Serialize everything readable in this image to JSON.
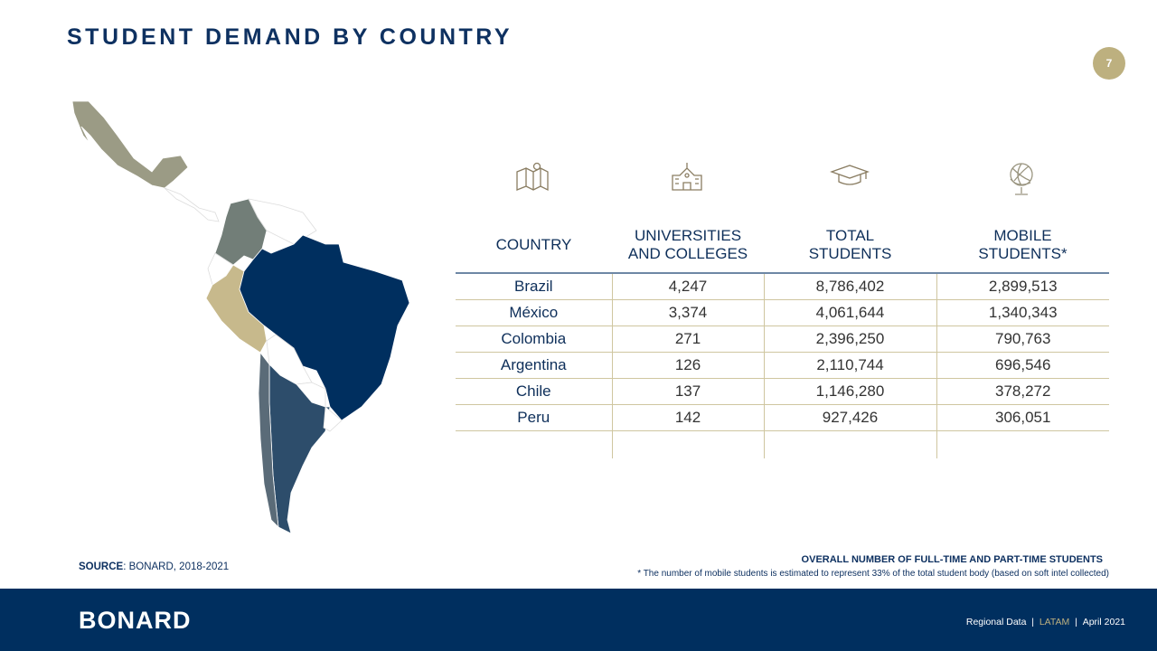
{
  "title": "STUDENT DEMAND BY COUNTRY",
  "page_number": "7",
  "colors": {
    "navy": "#002f5f",
    "gold": "#bdb07f",
    "brazil": "#002f5f",
    "mexico": "#9b9b85",
    "colombia": "#727e78",
    "peru": "#c7b98c",
    "argentina": "#2d4d6b"
  },
  "icons": [
    "map-pin-icon",
    "school-building-icon",
    "graduation-cap-icon",
    "globe-icon"
  ],
  "table": {
    "headers": [
      [
        "COUNTRY",
        ""
      ],
      [
        "UNIVERSITIES",
        "AND COLLEGES"
      ],
      [
        "TOTAL",
        "STUDENTS"
      ],
      [
        "MOBILE",
        "STUDENTS*"
      ]
    ],
    "rows": [
      [
        "Brazil",
        "4,247",
        "8,786,402",
        "2,899,513"
      ],
      [
        "México",
        "3,374",
        "4,061,644",
        "1,340,343"
      ],
      [
        "Colombia",
        "271",
        "2,396,250",
        "790,763"
      ],
      [
        "Argentina",
        "126",
        "2,110,744",
        "696,546"
      ],
      [
        "Chile",
        "137",
        "1,146,280",
        "378,272"
      ],
      [
        "Peru",
        "142",
        "927,426",
        "306,051"
      ]
    ]
  },
  "source": {
    "label": "SOURCE",
    "text": ": BONARD, 2018-2021"
  },
  "note_title": "OVERALL NUMBER OF FULL-TIME AND PART-TIME STUDENTS",
  "note_text": "* The number of mobile students is estimated to represent 33% of the total student body (based on soft intel collected)",
  "footer": {
    "logo": "BONARD",
    "section": "Regional Data",
    "region": "LATAM",
    "date": "April 2021",
    "sep": "|"
  }
}
